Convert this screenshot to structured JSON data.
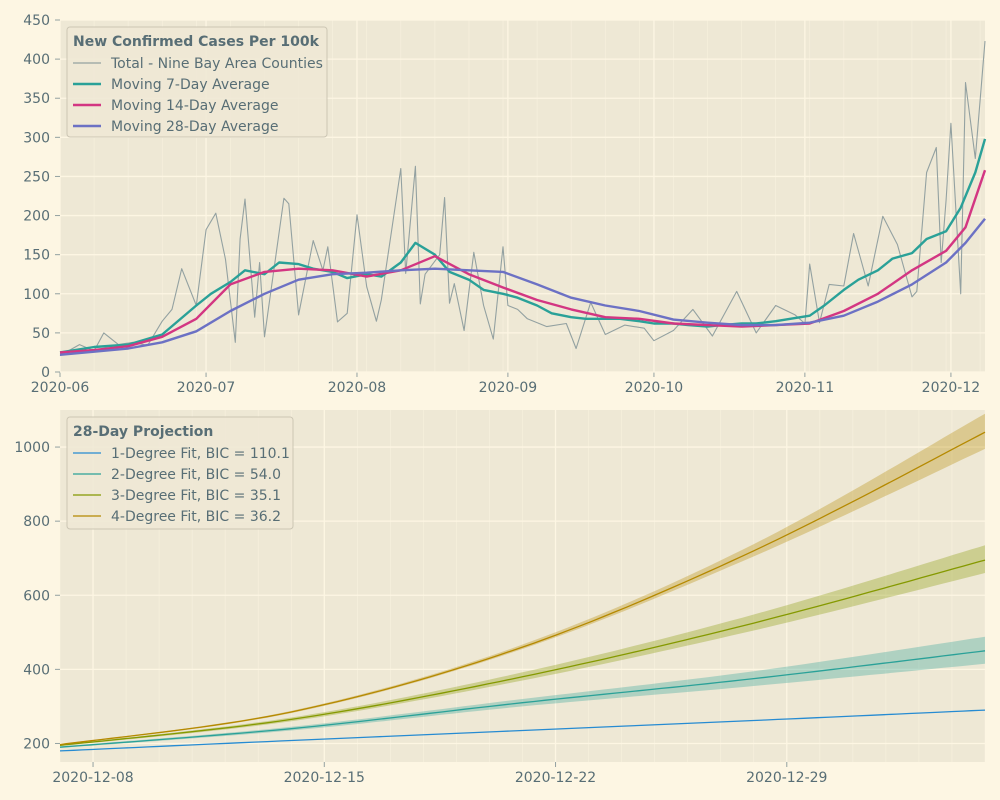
{
  "chart_data": [
    {
      "type": "line",
      "legend_title": "New Confirmed Cases Per 100k",
      "legend_position": "top-left",
      "x_ticks": [
        "2020-06",
        "2020-07",
        "2020-08",
        "2020-09",
        "2020-10",
        "2020-11",
        "2020-12"
      ],
      "y_ticks": [
        "0",
        "50",
        "100",
        "150",
        "200",
        "250",
        "300",
        "350",
        "400",
        "450"
      ],
      "ylim": [
        0,
        450
      ],
      "xlim": [
        "2020-06-01",
        "2020-12-08"
      ],
      "grid": true,
      "series": [
        {
          "name": "Total - Nine Bay Area Counties",
          "color": "#93a1a1",
          "x": [
            "2020-06-01",
            "2020-06-05",
            "2020-06-08",
            "2020-06-10",
            "2020-06-13",
            "2020-06-16",
            "2020-06-19",
            "2020-06-22",
            "2020-06-24",
            "2020-06-26",
            "2020-06-29",
            "2020-07-01",
            "2020-07-03",
            "2020-07-05",
            "2020-07-07",
            "2020-07-08",
            "2020-07-09",
            "2020-07-11",
            "2020-07-12",
            "2020-07-13",
            "2020-07-17",
            "2020-07-18",
            "2020-07-20",
            "2020-07-23",
            "2020-07-25",
            "2020-07-26",
            "2020-07-28",
            "2020-07-30",
            "2020-08-01",
            "2020-08-03",
            "2020-08-05",
            "2020-08-06",
            "2020-08-10",
            "2020-08-11",
            "2020-08-13",
            "2020-08-14",
            "2020-08-15",
            "2020-08-18",
            "2020-08-19",
            "2020-08-20",
            "2020-08-21",
            "2020-08-23",
            "2020-08-25",
            "2020-08-27",
            "2020-08-29",
            "2020-08-31",
            "2020-09-01",
            "2020-09-03",
            "2020-09-05",
            "2020-09-09",
            "2020-09-13",
            "2020-09-15",
            "2020-09-18",
            "2020-09-21",
            "2020-09-25",
            "2020-09-29",
            "2020-10-01",
            "2020-10-05",
            "2020-10-09",
            "2020-10-13",
            "2020-10-18",
            "2020-10-22",
            "2020-10-26",
            "2020-10-30",
            "2020-11-01",
            "2020-11-02",
            "2020-11-04",
            "2020-11-06",
            "2020-11-09",
            "2020-11-11",
            "2020-11-14",
            "2020-11-17",
            "2020-11-20",
            "2020-11-23",
            "2020-11-24",
            "2020-11-26",
            "2020-11-28",
            "2020-11-29",
            "2020-11-30",
            "2020-12-01",
            "2020-12-03",
            "2020-12-04",
            "2020-12-06",
            "2020-12-08"
          ],
          "values": [
            21,
            35,
            27,
            50,
            35,
            38,
            34,
            65,
            80,
            132,
            85,
            182,
            203,
            144,
            38,
            170,
            221,
            70,
            140,
            45,
            222,
            215,
            73,
            168,
            130,
            160,
            64,
            75,
            201,
            109,
            65,
            92,
            260,
            126,
            263,
            87,
            125,
            150,
            223,
            88,
            113,
            53,
            153,
            85,
            42,
            160,
            85,
            80,
            68,
            58,
            62,
            30,
            89,
            48,
            60,
            56,
            40,
            53,
            80,
            46,
            103,
            50,
            85,
            73,
            62,
            138,
            63,
            112,
            110,
            177,
            110,
            199,
            163,
            96,
            103,
            255,
            287,
            140,
            220,
            318,
            100,
            370,
            273,
            423
          ]
        },
        {
          "name": "Moving 7-Day Average",
          "color": "#2aa198",
          "x": [
            "2020-06-01",
            "2020-06-08",
            "2020-06-15",
            "2020-06-22",
            "2020-06-29",
            "2020-07-02",
            "2020-07-06",
            "2020-07-09",
            "2020-07-13",
            "2020-07-16",
            "2020-07-20",
            "2020-07-23",
            "2020-07-27",
            "2020-07-30",
            "2020-08-03",
            "2020-08-06",
            "2020-08-10",
            "2020-08-13",
            "2020-08-17",
            "2020-08-20",
            "2020-08-24",
            "2020-08-27",
            "2020-08-31",
            "2020-09-03",
            "2020-09-07",
            "2020-09-10",
            "2020-09-14",
            "2020-09-17",
            "2020-09-21",
            "2020-09-24",
            "2020-09-28",
            "2020-10-01",
            "2020-10-05",
            "2020-10-08",
            "2020-10-12",
            "2020-10-15",
            "2020-10-19",
            "2020-10-22",
            "2020-10-26",
            "2020-10-29",
            "2020-11-02",
            "2020-11-05",
            "2020-11-09",
            "2020-11-12",
            "2020-11-16",
            "2020-11-19",
            "2020-11-23",
            "2020-11-26",
            "2020-11-30",
            "2020-12-03",
            "2020-12-06",
            "2020-12-08"
          ],
          "values": [
            25,
            32,
            35,
            48,
            85,
            100,
            115,
            130,
            125,
            140,
            138,
            132,
            128,
            120,
            125,
            122,
            140,
            165,
            150,
            128,
            118,
            105,
            100,
            95,
            85,
            75,
            70,
            68,
            68,
            68,
            65,
            62,
            62,
            60,
            58,
            60,
            62,
            62,
            65,
            68,
            72,
            85,
            105,
            118,
            130,
            145,
            152,
            170,
            180,
            210,
            255,
            298
          ]
        },
        {
          "name": "Moving 14-Day Average",
          "color": "#d33682",
          "x": [
            "2020-06-01",
            "2020-06-08",
            "2020-06-15",
            "2020-06-22",
            "2020-06-29",
            "2020-07-06",
            "2020-07-13",
            "2020-07-20",
            "2020-07-27",
            "2020-08-03",
            "2020-08-10",
            "2020-08-17",
            "2020-08-24",
            "2020-08-31",
            "2020-09-07",
            "2020-09-14",
            "2020-09-21",
            "2020-09-28",
            "2020-10-05",
            "2020-10-12",
            "2020-10-19",
            "2020-10-26",
            "2020-11-02",
            "2020-11-09",
            "2020-11-16",
            "2020-11-23",
            "2020-11-30",
            "2020-12-04",
            "2020-12-08"
          ],
          "values": [
            25,
            28,
            33,
            45,
            68,
            112,
            128,
            132,
            130,
            122,
            130,
            148,
            125,
            108,
            92,
            80,
            70,
            68,
            62,
            60,
            58,
            60,
            62,
            78,
            100,
            130,
            155,
            185,
            258
          ]
        },
        {
          "name": "Moving 28-Day Average",
          "color": "#6c71c4",
          "x": [
            "2020-06-01",
            "2020-06-08",
            "2020-06-15",
            "2020-06-22",
            "2020-06-29",
            "2020-07-06",
            "2020-07-13",
            "2020-07-20",
            "2020-07-27",
            "2020-08-03",
            "2020-08-10",
            "2020-08-17",
            "2020-08-24",
            "2020-08-31",
            "2020-09-07",
            "2020-09-14",
            "2020-09-21",
            "2020-09-28",
            "2020-10-05",
            "2020-10-12",
            "2020-10-19",
            "2020-10-26",
            "2020-11-02",
            "2020-11-09",
            "2020-11-16",
            "2020-11-23",
            "2020-11-30",
            "2020-12-04",
            "2020-12-08"
          ],
          "values": [
            22,
            26,
            30,
            38,
            52,
            78,
            100,
            118,
            125,
            127,
            130,
            132,
            130,
            128,
            112,
            95,
            85,
            78,
            67,
            63,
            60,
            60,
            63,
            72,
            90,
            112,
            140,
            165,
            196
          ]
        }
      ]
    },
    {
      "type": "line",
      "legend_title": "28-Day Projection",
      "legend_position": "top-left",
      "x_ticks": [
        "2020-12-08",
        "2020-12-15",
        "2020-12-22",
        "2020-12-29"
      ],
      "y_ticks": [
        "200",
        "400",
        "600",
        "800",
        "1000"
      ],
      "ylim": [
        150,
        1100
      ],
      "xlim": [
        "2020-12-07",
        "2021-01-04"
      ],
      "grid": true,
      "series": [
        {
          "name": "1-Degree Fit, BIC = 110.1",
          "color": "#268bd2",
          "x": [
            "2020-12-07",
            "2020-12-14",
            "2020-12-21",
            "2020-12-28",
            "2021-01-04"
          ],
          "values": [
            180,
            208,
            235,
            262,
            290
          ],
          "band": null
        },
        {
          "name": "2-Degree Fit, BIC = 54.0",
          "color": "#2aa198",
          "x": [
            "2020-12-07",
            "2020-12-14",
            "2020-12-21",
            "2020-12-28",
            "2021-01-04"
          ],
          "values": [
            190,
            240,
            310,
            375,
            450
          ],
          "band": {
            "lower": [
              188,
              235,
              300,
              355,
              415
            ],
            "upper": [
              192,
              245,
              320,
              395,
              488
            ]
          }
        },
        {
          "name": "3-Degree Fit, BIC = 35.1",
          "color": "#859900",
          "x": [
            "2020-12-07",
            "2020-12-14",
            "2020-12-21",
            "2020-12-28",
            "2021-01-04"
          ],
          "values": [
            195,
            265,
            380,
            525,
            695
          ],
          "band": {
            "lower": [
              193,
              260,
              370,
              505,
              660
            ],
            "upper": [
              197,
              270,
              392,
              548,
              735
            ]
          }
        },
        {
          "name": "4-Degree Fit, BIC = 36.2",
          "color": "#b58900",
          "x": [
            "2020-12-07",
            "2020-12-14",
            "2020-12-21",
            "2020-12-28",
            "2021-01-04"
          ],
          "values": [
            197,
            285,
            460,
            720,
            1040
          ],
          "band": {
            "lower": [
              196,
              282,
              455,
              705,
              995
            ],
            "upper": [
              198,
              288,
              467,
              738,
              1090
            ]
          }
        }
      ]
    }
  ]
}
